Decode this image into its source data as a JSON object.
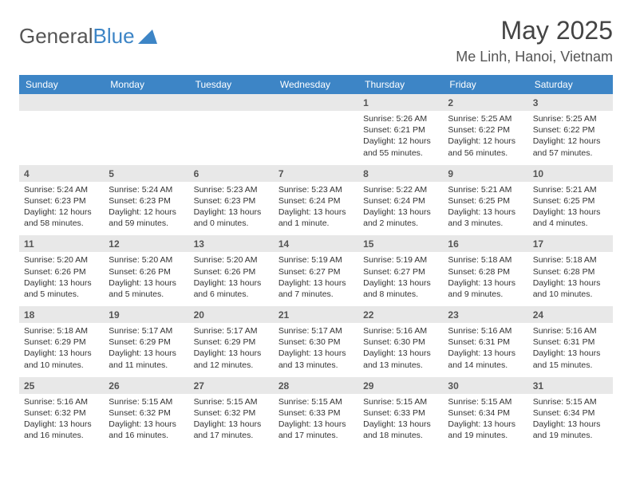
{
  "brand": {
    "part1": "General",
    "part2": "Blue"
  },
  "title": "May 2025",
  "location": "Me Linh, Hanoi, Vietnam",
  "colors": {
    "header_bg": "#3d85c6",
    "header_text": "#ffffff",
    "daynum_bg": "#e8e8e8",
    "body_text": "#333333",
    "page_bg": "#ffffff"
  },
  "day_headers": [
    "Sunday",
    "Monday",
    "Tuesday",
    "Wednesday",
    "Thursday",
    "Friday",
    "Saturday"
  ],
  "weeks": [
    [
      null,
      null,
      null,
      null,
      {
        "n": "1",
        "sr": "5:26 AM",
        "ss": "6:21 PM",
        "dl": "12 hours and 55 minutes."
      },
      {
        "n": "2",
        "sr": "5:25 AM",
        "ss": "6:22 PM",
        "dl": "12 hours and 56 minutes."
      },
      {
        "n": "3",
        "sr": "5:25 AM",
        "ss": "6:22 PM",
        "dl": "12 hours and 57 minutes."
      }
    ],
    [
      {
        "n": "4",
        "sr": "5:24 AM",
        "ss": "6:23 PM",
        "dl": "12 hours and 58 minutes."
      },
      {
        "n": "5",
        "sr": "5:24 AM",
        "ss": "6:23 PM",
        "dl": "12 hours and 59 minutes."
      },
      {
        "n": "6",
        "sr": "5:23 AM",
        "ss": "6:23 PM",
        "dl": "13 hours and 0 minutes."
      },
      {
        "n": "7",
        "sr": "5:23 AM",
        "ss": "6:24 PM",
        "dl": "13 hours and 1 minute."
      },
      {
        "n": "8",
        "sr": "5:22 AM",
        "ss": "6:24 PM",
        "dl": "13 hours and 2 minutes."
      },
      {
        "n": "9",
        "sr": "5:21 AM",
        "ss": "6:25 PM",
        "dl": "13 hours and 3 minutes."
      },
      {
        "n": "10",
        "sr": "5:21 AM",
        "ss": "6:25 PM",
        "dl": "13 hours and 4 minutes."
      }
    ],
    [
      {
        "n": "11",
        "sr": "5:20 AM",
        "ss": "6:26 PM",
        "dl": "13 hours and 5 minutes."
      },
      {
        "n": "12",
        "sr": "5:20 AM",
        "ss": "6:26 PM",
        "dl": "13 hours and 5 minutes."
      },
      {
        "n": "13",
        "sr": "5:20 AM",
        "ss": "6:26 PM",
        "dl": "13 hours and 6 minutes."
      },
      {
        "n": "14",
        "sr": "5:19 AM",
        "ss": "6:27 PM",
        "dl": "13 hours and 7 minutes."
      },
      {
        "n": "15",
        "sr": "5:19 AM",
        "ss": "6:27 PM",
        "dl": "13 hours and 8 minutes."
      },
      {
        "n": "16",
        "sr": "5:18 AM",
        "ss": "6:28 PM",
        "dl": "13 hours and 9 minutes."
      },
      {
        "n": "17",
        "sr": "5:18 AM",
        "ss": "6:28 PM",
        "dl": "13 hours and 10 minutes."
      }
    ],
    [
      {
        "n": "18",
        "sr": "5:18 AM",
        "ss": "6:29 PM",
        "dl": "13 hours and 10 minutes."
      },
      {
        "n": "19",
        "sr": "5:17 AM",
        "ss": "6:29 PM",
        "dl": "13 hours and 11 minutes."
      },
      {
        "n": "20",
        "sr": "5:17 AM",
        "ss": "6:29 PM",
        "dl": "13 hours and 12 minutes."
      },
      {
        "n": "21",
        "sr": "5:17 AM",
        "ss": "6:30 PM",
        "dl": "13 hours and 13 minutes."
      },
      {
        "n": "22",
        "sr": "5:16 AM",
        "ss": "6:30 PM",
        "dl": "13 hours and 13 minutes."
      },
      {
        "n": "23",
        "sr": "5:16 AM",
        "ss": "6:31 PM",
        "dl": "13 hours and 14 minutes."
      },
      {
        "n": "24",
        "sr": "5:16 AM",
        "ss": "6:31 PM",
        "dl": "13 hours and 15 minutes."
      }
    ],
    [
      {
        "n": "25",
        "sr": "5:16 AM",
        "ss": "6:32 PM",
        "dl": "13 hours and 16 minutes."
      },
      {
        "n": "26",
        "sr": "5:15 AM",
        "ss": "6:32 PM",
        "dl": "13 hours and 16 minutes."
      },
      {
        "n": "27",
        "sr": "5:15 AM",
        "ss": "6:32 PM",
        "dl": "13 hours and 17 minutes."
      },
      {
        "n": "28",
        "sr": "5:15 AM",
        "ss": "6:33 PM",
        "dl": "13 hours and 17 minutes."
      },
      {
        "n": "29",
        "sr": "5:15 AM",
        "ss": "6:33 PM",
        "dl": "13 hours and 18 minutes."
      },
      {
        "n": "30",
        "sr": "5:15 AM",
        "ss": "6:34 PM",
        "dl": "13 hours and 19 minutes."
      },
      {
        "n": "31",
        "sr": "5:15 AM",
        "ss": "6:34 PM",
        "dl": "13 hours and 19 minutes."
      }
    ]
  ],
  "labels": {
    "sunrise": "Sunrise: ",
    "sunset": "Sunset: ",
    "daylight": "Daylight: "
  }
}
